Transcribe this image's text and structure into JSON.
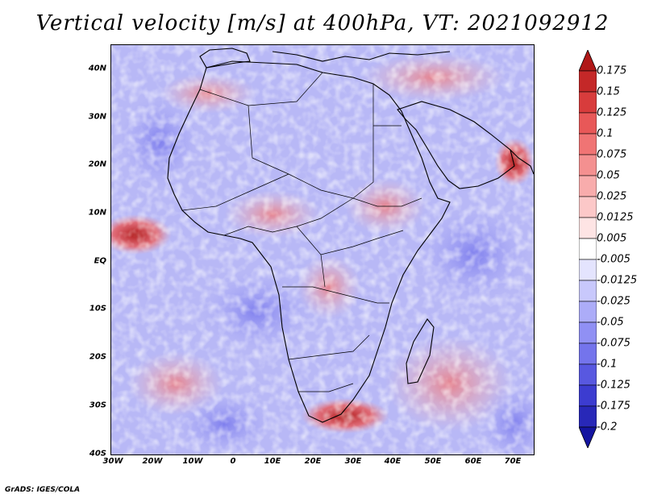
{
  "title": "Vertical velocity [m/s] at 400hPa, VT: 2021092912",
  "credit": "GrADS: IGES/COLA",
  "map": {
    "lat_labels": [
      "40N",
      "30N",
      "20N",
      "10N",
      "EQ",
      "10S",
      "20S",
      "30S",
      "40S"
    ],
    "lon_labels": [
      "30W",
      "20W",
      "10W",
      "0",
      "10E",
      "20E",
      "30E",
      "40E",
      "50E",
      "60E",
      "70E"
    ]
  },
  "colorbar": {
    "labels": [
      "0.175",
      "0.15",
      "0.125",
      "0.1",
      "0.075",
      "0.05",
      "0.025",
      "0.0125",
      "0.005",
      "-0.005",
      "-0.0125",
      "-0.025",
      "-0.05",
      "-0.075",
      "-0.1",
      "-0.125",
      "-0.175",
      "-0.2"
    ],
    "colors": [
      "#b01818",
      "#c42828",
      "#d83c3c",
      "#e85858",
      "#f07474",
      "#f49090",
      "#f8acac",
      "#fcc8c8",
      "#fee4e4",
      "#ffffff",
      "#e4e4fe",
      "#c8c8fc",
      "#acacf8",
      "#9090f4",
      "#7474ec",
      "#5858e0",
      "#3c3cd0",
      "#2828b8",
      "#1414a0"
    ]
  }
}
